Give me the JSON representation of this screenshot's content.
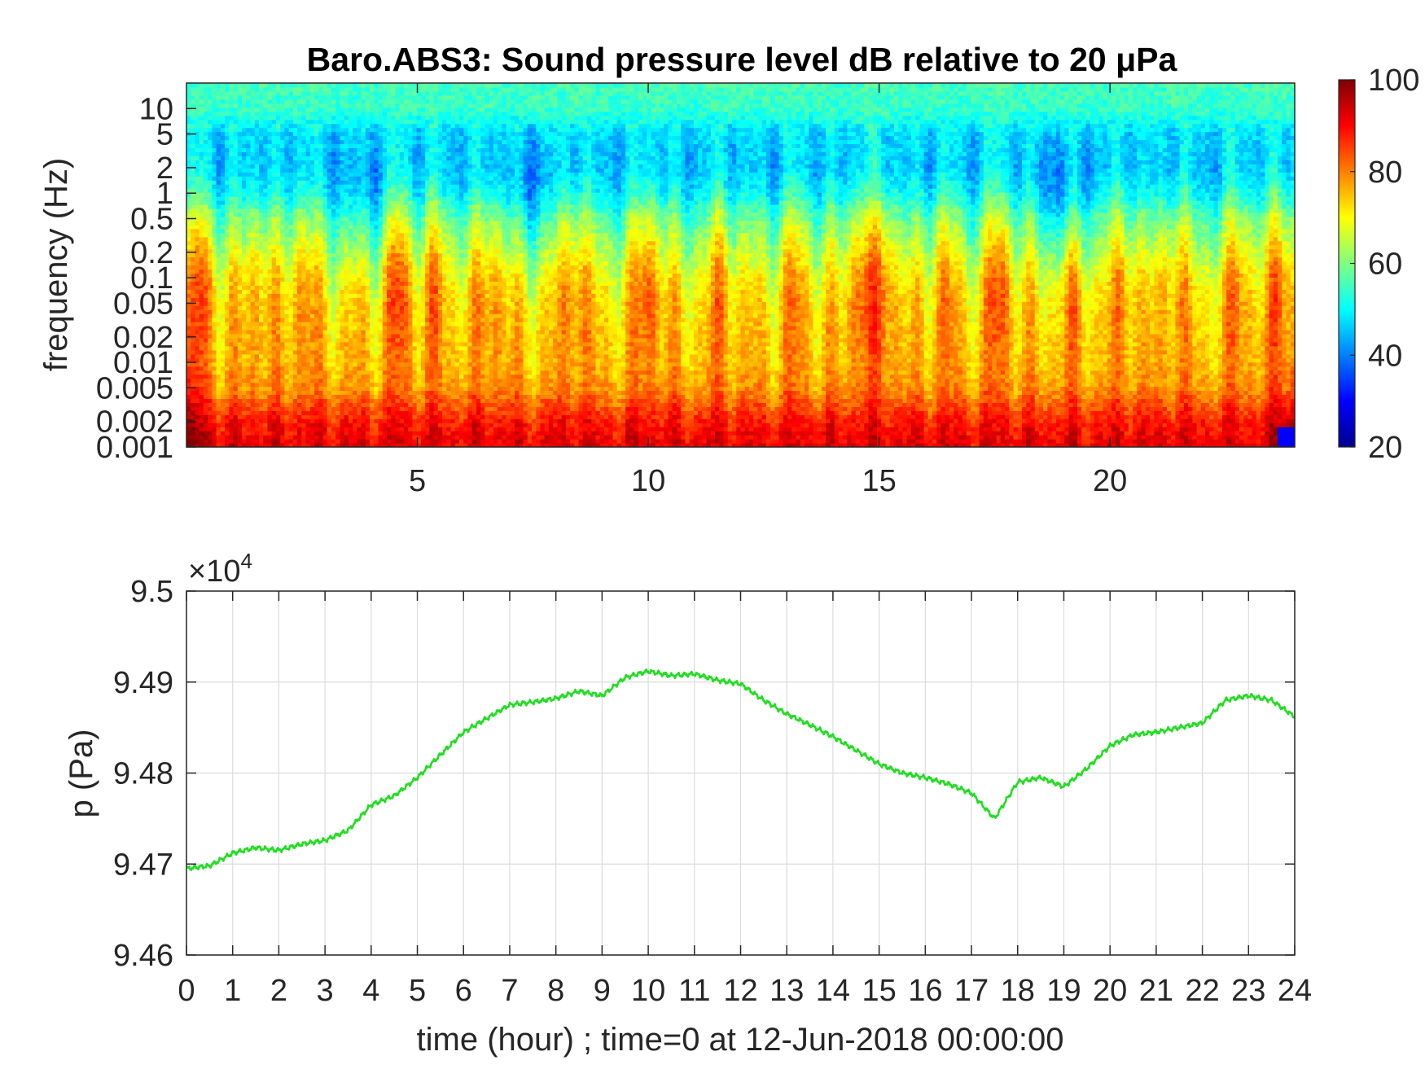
{
  "chart_data": [
    {
      "type": "heatmap",
      "title": "Baro.ABS3: Sound pressure level dB relative to 20 μPa",
      "xlabel": "",
      "ylabel": "frequency (Hz)",
      "x_scale": "linear",
      "y_scale": "log",
      "xlim": [
        0,
        24
      ],
      "ylim": [
        0.001,
        20
      ],
      "x_ticks": [
        5,
        10,
        15,
        20
      ],
      "x_tick_labels": [
        "5",
        "10",
        "15",
        "20"
      ],
      "y_ticks": [
        0.001,
        0.002,
        0.005,
        0.01,
        0.02,
        0.05,
        0.1,
        0.2,
        0.5,
        1,
        2,
        5,
        10
      ],
      "y_tick_labels": [
        "0.001",
        "0.002",
        "0.005",
        "0.01",
        "0.02",
        "0.05",
        "0.1",
        "0.2",
        "0.5",
        "1",
        "2",
        "5",
        "10"
      ],
      "colormap": "jet",
      "colorbar": {
        "range": [
          20,
          100
        ],
        "ticks": [
          20,
          40,
          60,
          80,
          100
        ],
        "tick_labels": [
          "20",
          "40",
          "60",
          "80",
          "100"
        ],
        "position": "right"
      },
      "level_profile": {
        "frequencies_hz": [
          0.001,
          0.002,
          0.005,
          0.01,
          0.02,
          0.05,
          0.1,
          0.2,
          0.5,
          1,
          2,
          5,
          10,
          20
        ],
        "typical_level_db": [
          92,
          88,
          78,
          75,
          74,
          72,
          69,
          64,
          57,
          49,
          45,
          47,
          54,
          55
        ]
      },
      "bursts": [
        {
          "time_hour": 0.3,
          "strength": 1.0
        },
        {
          "time_hour": 1.5,
          "strength": 0.5
        },
        {
          "time_hour": 2.5,
          "strength": 0.6
        },
        {
          "time_hour": 4.6,
          "strength": 1.0
        },
        {
          "time_hour": 5.4,
          "strength": 0.6
        },
        {
          "time_hour": 6.6,
          "strength": 0.7
        },
        {
          "time_hour": 8.4,
          "strength": 0.8
        },
        {
          "time_hour": 10.0,
          "strength": 1.0
        },
        {
          "time_hour": 11.6,
          "strength": 0.6
        },
        {
          "time_hour": 13.2,
          "strength": 0.6
        },
        {
          "time_hour": 14.6,
          "strength": 0.9
        },
        {
          "time_hour": 15.1,
          "strength": 0.9
        },
        {
          "time_hour": 16.4,
          "strength": 0.6
        },
        {
          "time_hour": 17.6,
          "strength": 1.0
        },
        {
          "time_hour": 19.2,
          "strength": 0.5
        },
        {
          "time_hour": 20.3,
          "strength": 0.6
        },
        {
          "time_hour": 21.4,
          "strength": 0.6
        },
        {
          "time_hour": 22.8,
          "strength": 0.7
        },
        {
          "time_hour": 23.7,
          "strength": 0.9
        }
      ],
      "quiet_windows": [
        {
          "time_hour": 3.8,
          "strength": 0.5
        },
        {
          "time_hour": 7.4,
          "strength": 0.6
        },
        {
          "time_hour": 19.0,
          "strength": 0.9
        }
      ]
    },
    {
      "type": "line",
      "title": "",
      "xlabel": "time (hour) ; time=0 at 12-Jun-2018 00:00:00",
      "ylabel": "p (Pa)",
      "exponent_label": "×10",
      "exponent_power": "4",
      "xlim": [
        0,
        24
      ],
      "ylim": [
        94600,
        95000
      ],
      "x_ticks": [
        0,
        1,
        2,
        3,
        4,
        5,
        6,
        7,
        8,
        9,
        10,
        11,
        12,
        13,
        14,
        15,
        16,
        17,
        18,
        19,
        20,
        21,
        22,
        23,
        24
      ],
      "x_tick_labels": [
        "0",
        "1",
        "2",
        "3",
        "4",
        "5",
        "6",
        "7",
        "8",
        "9",
        "10",
        "11",
        "12",
        "13",
        "14",
        "15",
        "16",
        "17",
        "18",
        "19",
        "20",
        "21",
        "22",
        "23",
        "24"
      ],
      "y_ticks": [
        94600,
        94700,
        94800,
        94900,
        95000
      ],
      "y_tick_labels": [
        "9.46",
        "9.47",
        "9.48",
        "9.49",
        "9.5"
      ],
      "grid": true,
      "series": [
        {
          "color": "#22dd22",
          "x": [
            0,
            0.5,
            1,
            1.5,
            2,
            2.5,
            3,
            3.5,
            4,
            4.5,
            5,
            5.5,
            6,
            6.5,
            7,
            7.5,
            8,
            8.5,
            9,
            9.5,
            10,
            10.5,
            11,
            11.5,
            12,
            12.5,
            13,
            13.5,
            14,
            14.5,
            15,
            15.5,
            16,
            16.5,
            17,
            17.5,
            18,
            18.5,
            19,
            19.5,
            20,
            20.5,
            21,
            21.5,
            22,
            22.5,
            23,
            23.5,
            24
          ],
          "y": [
            94695,
            94698,
            94712,
            94718,
            94715,
            94722,
            94726,
            94737,
            94765,
            94775,
            94795,
            94820,
            94845,
            94860,
            94875,
            94878,
            94882,
            94890,
            94885,
            94905,
            94912,
            94907,
            94909,
            94902,
            94898,
            94880,
            94865,
            94853,
            94840,
            94825,
            94810,
            94800,
            94795,
            94788,
            94778,
            94750,
            94790,
            94795,
            94785,
            94805,
            94830,
            94842,
            94845,
            94850,
            94855,
            94880,
            94885,
            94880,
            94862
          ]
        }
      ]
    }
  ]
}
